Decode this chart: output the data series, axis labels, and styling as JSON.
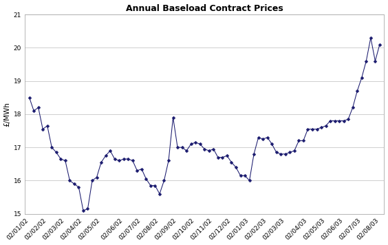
{
  "title": "Annual Baseload Contract Prices",
  "ylabel": "£/MWh",
  "ylim": [
    15,
    21
  ],
  "yticks": [
    15,
    16,
    17,
    18,
    19,
    20,
    21
  ],
  "line_color": "#1a1a6e",
  "marker": "D",
  "marker_size": 2.5,
  "bg_color": "#ffffff",
  "grid_color": "#c8c8c8",
  "x_labels": [
    "02/01/02",
    "02/02/02",
    "02/03/02",
    "02/04/02",
    "02/05/02",
    "02/06/02",
    "02/07/02",
    "02/08/02",
    "02/09/02",
    "02/10/02",
    "02/11/02",
    "02/12/02",
    "02/01/03",
    "02/02/03",
    "02/03/03",
    "02/04/03",
    "02/05/03",
    "02/06/03",
    "02/07/03",
    "02/08/03"
  ],
  "y_values": [
    18.5,
    18.1,
    18.2,
    17.55,
    17.65,
    17.0,
    16.85,
    16.65,
    16.6,
    16.0,
    15.9,
    15.8,
    15.1,
    15.15,
    16.0,
    16.1,
    16.55,
    16.75,
    16.9,
    16.65,
    16.6,
    16.65,
    16.65,
    16.6,
    16.3,
    16.35,
    16.05,
    15.85,
    15.85,
    15.6,
    16.0,
    16.6,
    17.9,
    17.0,
    17.0,
    16.9,
    17.1,
    17.15,
    17.1,
    16.95,
    16.9,
    16.95,
    16.7,
    16.7,
    16.75,
    16.55,
    16.4,
    16.15,
    16.15,
    16.0,
    16.8,
    17.3,
    17.25,
    17.3,
    17.1,
    16.85,
    16.8,
    16.8,
    16.85,
    16.9,
    17.2,
    17.2,
    17.55,
    17.55,
    17.55,
    17.6,
    17.65,
    17.8,
    17.8,
    17.8,
    17.8,
    17.85,
    18.2,
    18.7,
    19.1,
    19.6,
    20.3,
    19.6,
    20.1
  ],
  "title_fontsize": 9,
  "ylabel_fontsize": 7.5,
  "tick_fontsize": 6.5,
  "linewidth": 0.75
}
